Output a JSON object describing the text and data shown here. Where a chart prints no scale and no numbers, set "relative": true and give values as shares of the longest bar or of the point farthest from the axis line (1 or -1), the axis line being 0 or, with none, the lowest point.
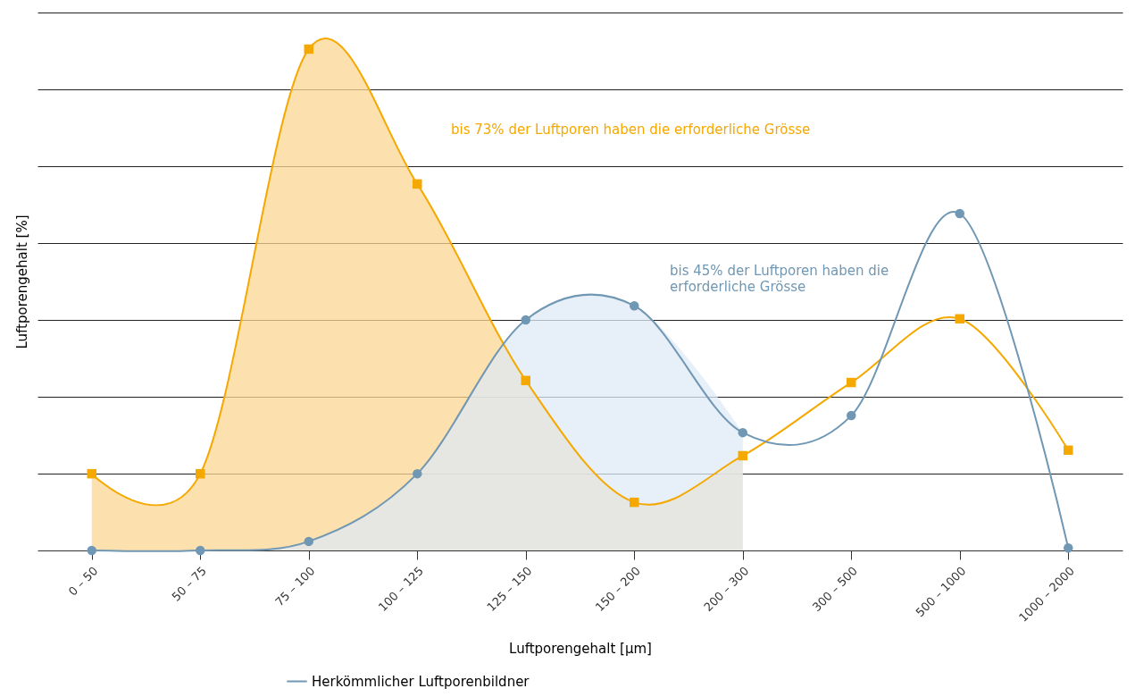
{
  "chart_data": {
    "type": "line",
    "relative": true,
    "xlabel": "Luftporengehalt [µm]",
    "ylabel": "Luftporengehalt [%]",
    "grid": "y",
    "legend": "bottom left",
    "categories": [
      "0 – 50",
      "50 – 75",
      "75 – 100",
      "100 – 125",
      "125 – 150",
      "150 – 200",
      "200 – 300",
      "300 – 500",
      "500 – 1000",
      "1000 – 2000"
    ],
    "series": [
      {
        "type": "area",
        "color": "#fbd591",
        "values": [
          0.153,
          0.153,
          1,
          0.731,
          0.339,
          0.096,
          0.189,
          null,
          null,
          null
        ]
      },
      {
        "type": "area",
        "color": "#dfeaf5",
        "values": [
          0,
          0,
          0.018,
          0.153,
          0.46,
          0.488,
          0.235,
          null,
          null,
          null
        ]
      },
      {
        "color": "#f5a800",
        "marker": "square",
        "values": [
          0.153,
          0.153,
          1,
          0.731,
          0.339,
          0.096,
          0.189,
          0.335,
          0.462,
          0.2
        ]
      },
      {
        "name": "Herkömmlicher Luftporenbildner",
        "color": "#7097b3",
        "marker": "circle",
        "values": [
          0,
          0,
          0.018,
          0.153,
          0.46,
          0.488,
          0.235,
          0.269,
          0.672,
          0.005
        ]
      }
    ],
    "annotations": [
      "bis 73% der Luftporen haben die erforderliche Grösse",
      "bis 45% der Luftporen haben die erforderliche Grösse"
    ]
  }
}
